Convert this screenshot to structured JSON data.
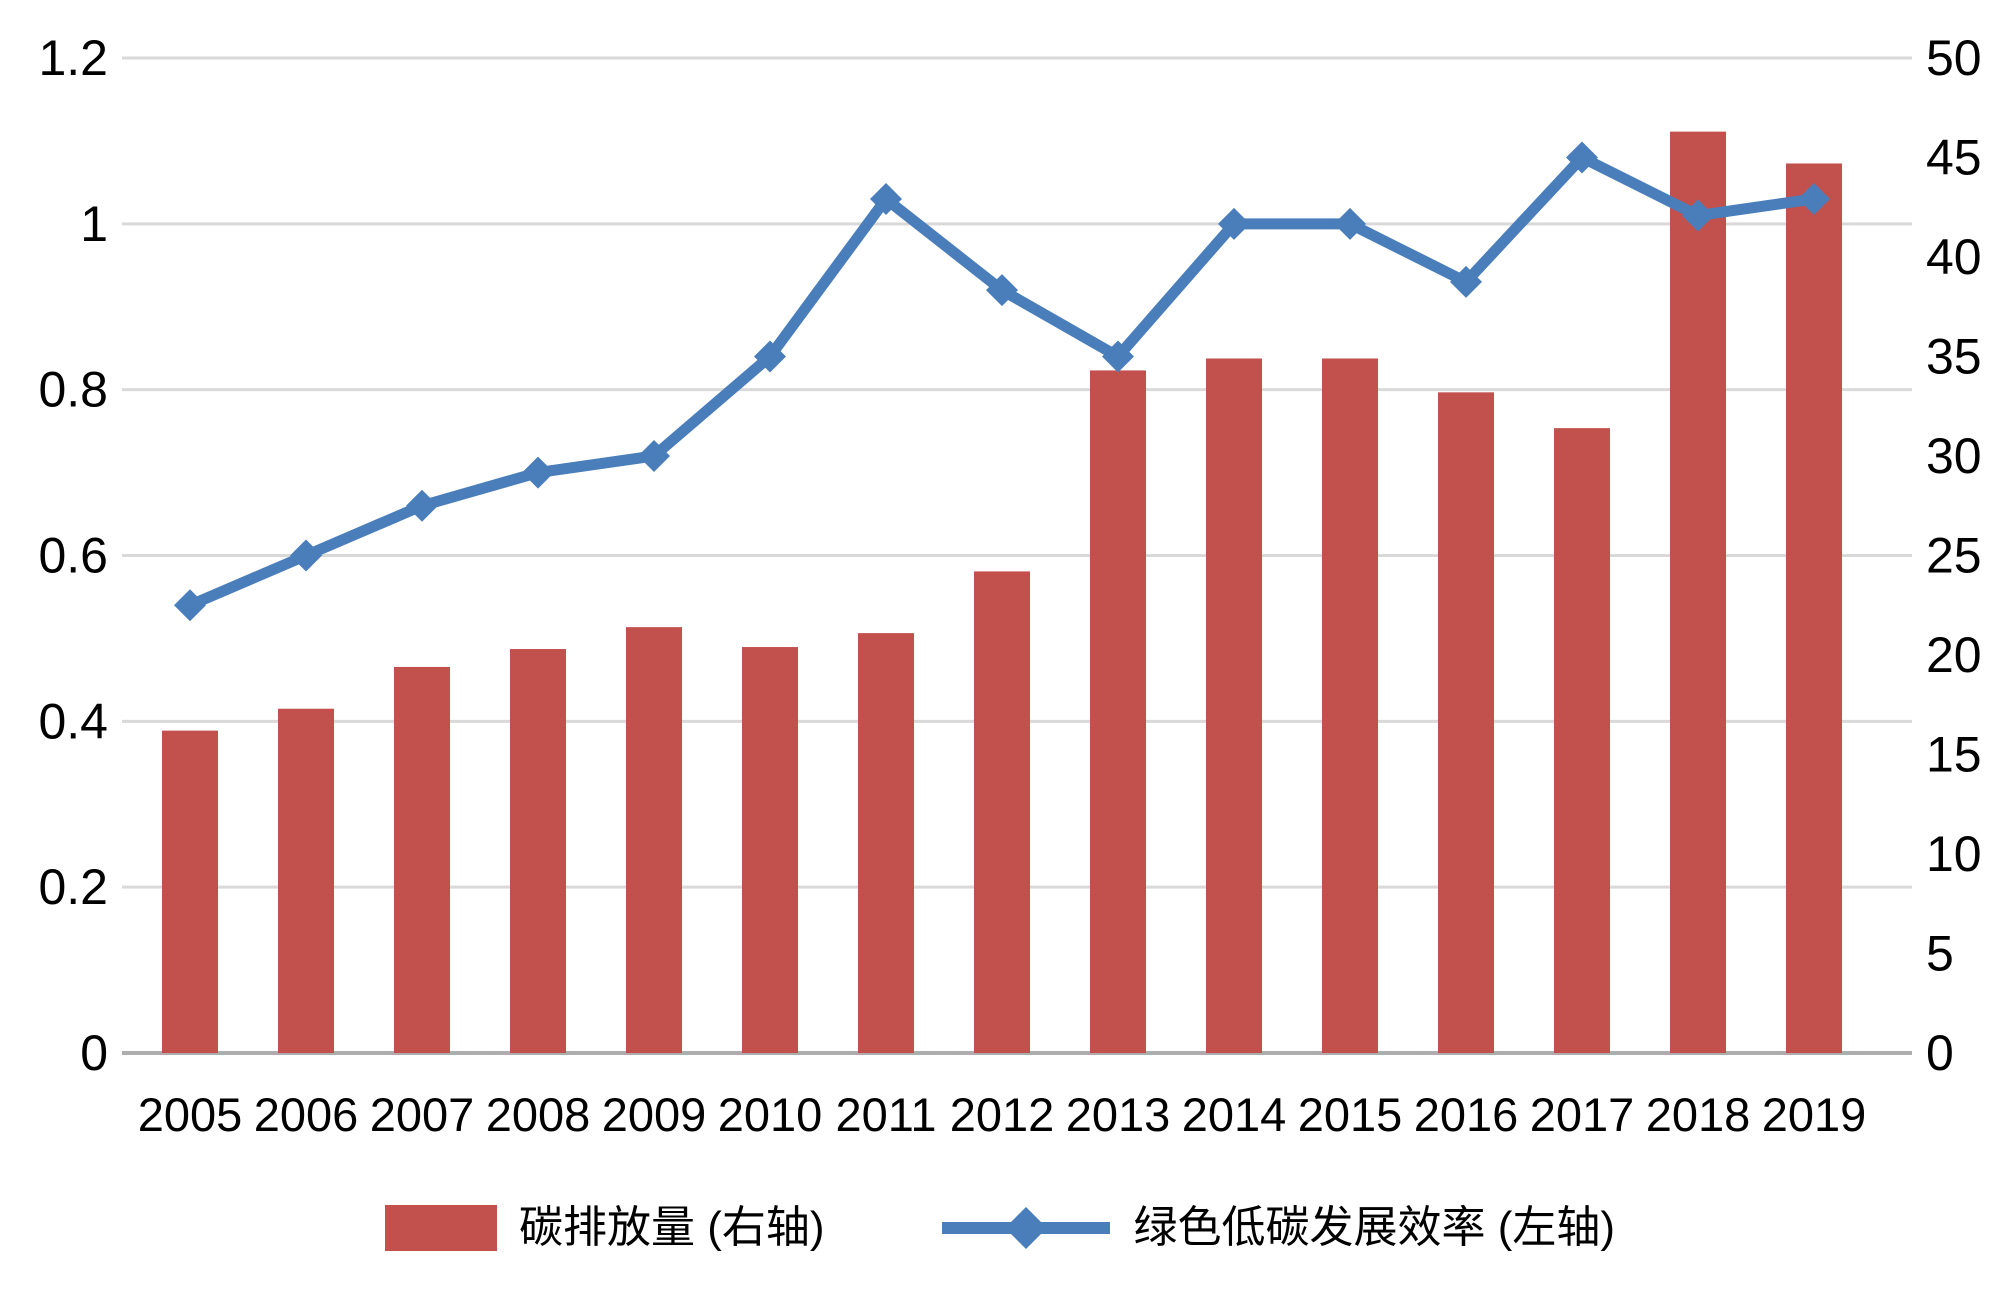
{
  "chart_data": {
    "type": "bar+line combo, dual axis",
    "title": "",
    "categories": [
      "2005",
      "2006",
      "2007",
      "2008",
      "2009",
      "2010",
      "2011",
      "2012",
      "2013",
      "2014",
      "2015",
      "2016",
      "2017",
      "2018",
      "2019"
    ],
    "series": [
      {
        "name": "碳排放量 (右轴)",
        "type": "bar",
        "axis": "right",
        "values": [
          16.2,
          17.3,
          19.4,
          20.3,
          21.4,
          20.4,
          21.1,
          24.2,
          34.3,
          34.9,
          34.9,
          33.2,
          31.4,
          46.3,
          44.7
        ]
      },
      {
        "name": "绿色低碳发展效率 (左轴)",
        "type": "line",
        "axis": "left",
        "marker": "diamond",
        "values": [
          0.54,
          0.6,
          0.66,
          0.7,
          0.72,
          0.84,
          1.03,
          0.92,
          0.84,
          1.0,
          1.0,
          0.93,
          1.08,
          1.01,
          1.03
        ]
      }
    ],
    "left_axis": {
      "min": 0,
      "max": 1.2,
      "step": 0.2,
      "tick_labels": [
        "0",
        "0.2",
        "0.4",
        "0.6",
        "0.8",
        "1",
        "1.2"
      ]
    },
    "right_axis": {
      "min": 0,
      "max": 50,
      "step": 5,
      "tick_labels": [
        "0",
        "5",
        "10",
        "15",
        "20",
        "25",
        "30",
        "35",
        "40",
        "45",
        "50"
      ]
    },
    "grid": true,
    "legend_position": "bottom"
  },
  "colors": {
    "bar": "#C2504D",
    "line": "#4A7EBB",
    "gridline": "#D9D9D9",
    "axis_line": "#ADADAD",
    "text": "#000000",
    "background": "#FFFFFF"
  }
}
